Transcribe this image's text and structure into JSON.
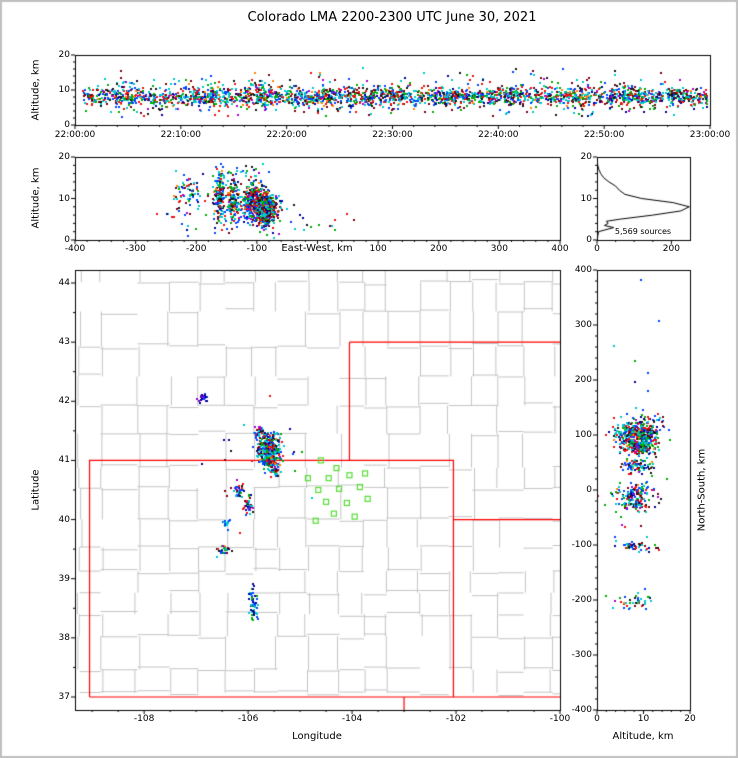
{
  "title": "Colorado LMA 2200-2300 UTC June 30, 2021",
  "annotations": {
    "hist_sources": "5,569 sources"
  },
  "axis_labels": {
    "time_height_y": "Altitude, km",
    "ew_y": "Altitude, km",
    "ew_x": "East-West, km",
    "map_x": "Longitude",
    "map_y": "Latitude",
    "ns_x": "Altitude, km",
    "ns_y": "North-South, km"
  },
  "colors": {
    "state_border": "#ff0000",
    "county_border": "#c4c4c4",
    "station": "#55dd33",
    "hist_line": "#000000",
    "frame": "#c0c0c0",
    "palette": [
      "#00c8c8",
      "#0044ff",
      "#000099",
      "#00aa00",
      "#ee1111",
      "#7a0011",
      "#151515",
      "#aa00cc",
      "#ff8800"
    ],
    "palette_weights": [
      0.25,
      0.17,
      0.06,
      0.13,
      0.15,
      0.1,
      0.07,
      0.04,
      0.03
    ]
  },
  "chart_data": [
    {
      "id": "time_height",
      "type": "scatter",
      "ylabel": "Altitude, km",
      "xlim": [
        0,
        3600
      ],
      "ylim": [
        0,
        20
      ],
      "xtick_pos": [
        0,
        600,
        1200,
        1800,
        2400,
        3000,
        3600
      ],
      "xtick_labels": [
        "22:00:00",
        "22:10:00",
        "22:20:00",
        "22:30:00",
        "22:40:00",
        "22:50:00",
        "23:00:00"
      ],
      "yticks": [
        0,
        10,
        20
      ],
      "clusters": [
        {
          "dist": "uniform",
          "x0": 40,
          "x1": 3580,
          "y": 8.4,
          "sy": 1.2,
          "n": 1500
        },
        {
          "dist": "uniform",
          "x0": 40,
          "x1": 3580,
          "y": 8.4,
          "sy": 2.6,
          "n": 420
        },
        {
          "x": 300,
          "sx": 70,
          "y": 8.8,
          "sy": 1.8,
          "n": 70
        },
        {
          "x": 700,
          "sx": 60,
          "y": 8.2,
          "sy": 1.6,
          "n": 70
        },
        {
          "x": 1050,
          "sx": 60,
          "y": 8.6,
          "sy": 1.7,
          "n": 70
        },
        {
          "x": 1350,
          "sx": 70,
          "y": 8.0,
          "sy": 1.6,
          "n": 70
        },
        {
          "x": 1750,
          "sx": 70,
          "y": 8.5,
          "sy": 1.8,
          "n": 70
        },
        {
          "x": 2100,
          "sx": 60,
          "y": 8.3,
          "sy": 1.6,
          "n": 60
        },
        {
          "x": 2450,
          "sx": 60,
          "y": 8.6,
          "sy": 1.6,
          "n": 60
        },
        {
          "x": 2800,
          "sx": 60,
          "y": 8.2,
          "sy": 1.5,
          "n": 50
        },
        {
          "x": 3150,
          "sx": 70,
          "y": 8.5,
          "sy": 1.6,
          "n": 60
        },
        {
          "x": 3400,
          "sx": 60,
          "y": 8.0,
          "sy": 1.4,
          "n": 40
        },
        {
          "dist": "uniform",
          "x0": 150,
          "x1": 3450,
          "y": 13.5,
          "sy": 1.6,
          "n": 60
        },
        {
          "dist": "uniform",
          "x0": 150,
          "x1": 3450,
          "y": 4.6,
          "sy": 0.9,
          "n": 50
        }
      ]
    },
    {
      "id": "ew_alt",
      "type": "scatter",
      "xlabel": "East-West, km",
      "ylabel": "Altitude, km",
      "xlim": [
        -400,
        400
      ],
      "ylim": [
        0,
        20
      ],
      "xticks": [
        -400,
        -300,
        -200,
        -100,
        0,
        100,
        200,
        300,
        400
      ],
      "hide_zero_xtick": true,
      "yticks": [
        0,
        10,
        20
      ],
      "clusters": [
        {
          "x": -90,
          "sx": 11,
          "y": 8,
          "sy": 2.0,
          "n": 650
        },
        {
          "x": -112,
          "sx": 7,
          "y": 9.5,
          "sy": 2.3,
          "n": 200
        },
        {
          "x": -140,
          "sx": 6,
          "y": 10,
          "sy": 2.6,
          "n": 140
        },
        {
          "x": -163,
          "sx": 4,
          "y": 11.5,
          "sy": 3.0,
          "n": 150
        },
        {
          "x": -215,
          "sx": 9,
          "y": 12,
          "sy": 2.2,
          "n": 55
        },
        {
          "x": -125,
          "sx": 25,
          "y": 16.5,
          "sy": 1.3,
          "n": 22
        },
        {
          "x": -150,
          "sx": 55,
          "y": 7,
          "sy": 2.8,
          "n": 70
        },
        {
          "dist": "uniform",
          "x0": -260,
          "x1": 60,
          "y": 5,
          "sy": 1.5,
          "n": 30
        }
      ]
    },
    {
      "id": "alt_hist",
      "type": "line",
      "annotation": "5,569 sources",
      "xlim": [
        0,
        250
      ],
      "xticks": [
        0,
        200
      ],
      "ylim": [
        0,
        20
      ],
      "yticks": [
        0,
        10,
        20
      ],
      "altitudes": [
        0,
        1,
        2,
        3,
        3.5,
        4,
        4.5,
        5,
        6,
        7,
        8,
        9,
        10,
        11,
        12,
        13,
        14,
        15,
        16,
        17,
        18,
        19,
        20
      ],
      "counts": [
        1,
        2,
        4,
        45,
        20,
        30,
        25,
        60,
        150,
        225,
        248,
        205,
        120,
        75,
        60,
        50,
        32,
        18,
        10,
        5,
        2,
        1,
        0
      ]
    },
    {
      "id": "plan_view",
      "type": "scatter",
      "xlabel": "Longitude",
      "ylabel": "Latitude",
      "xlim": [
        -109.33,
        -100
      ],
      "ylim": [
        36.78,
        44.22
      ],
      "xticks": [
        -108,
        -106,
        -104,
        -102,
        -100
      ],
      "yticks": [
        37,
        38,
        39,
        40,
        41,
        42,
        43,
        44
      ],
      "clusters": [
        {
          "x": -105.62,
          "sx": 0.1,
          "y": 41.18,
          "sy": 0.13,
          "n": 480
        },
        {
          "x": -105.6,
          "sx": 0.05,
          "y": 41.1,
          "sy": 0.06,
          "n": 170
        },
        {
          "x": -105.8,
          "sx": 0.06,
          "y": 41.5,
          "sy": 0.05,
          "n": 32
        },
        {
          "x": -106.9,
          "sx": 0.06,
          "y": 42.08,
          "sy": 0.04,
          "n": 26,
          "pal": [
            "#8800cc",
            "#2200cc",
            "#0044ff",
            "#000099"
          ]
        },
        {
          "x": -106.2,
          "sx": 0.05,
          "y": 40.5,
          "sy": 0.05,
          "n": 38
        },
        {
          "x": -106.02,
          "sx": 0.04,
          "y": 40.26,
          "sy": 0.09,
          "n": 42
        },
        {
          "x": -106.45,
          "sx": 0.04,
          "y": 39.95,
          "sy": 0.04,
          "n": 16,
          "pal": [
            "#0044ff",
            "#00c8c8"
          ]
        },
        {
          "x": -106.5,
          "sx": 0.06,
          "y": 39.5,
          "sy": 0.04,
          "n": 28
        },
        {
          "x": -105.92,
          "sx": 0.04,
          "y": 38.62,
          "sy": 0.15,
          "n": 60,
          "pal": [
            "#0044ff",
            "#00c8c8",
            "#000099",
            "#00aa00"
          ]
        },
        {
          "x": -105.5,
          "sx": 0.05,
          "y": 40.85,
          "sy": 0.05,
          "n": 28
        },
        {
          "x": -105.75,
          "sx": 0.45,
          "y": 40.9,
          "sy": 0.5,
          "n": 26
        }
      ]
    },
    {
      "id": "ns_alt",
      "type": "scatter",
      "xlabel": "Altitude, km",
      "ylabel": "North-South, km",
      "xlim": [
        0,
        20
      ],
      "ylim": [
        -400,
        400
      ],
      "xticks": [
        0,
        10,
        20
      ],
      "yticks": [
        400,
        300,
        200,
        100,
        0,
        -100,
        -200,
        -300,
        -400
      ],
      "clusters": [
        {
          "x": 8.5,
          "sx": 2.2,
          "y": 105,
          "sy": 10,
          "n": 400
        },
        {
          "x": 9.0,
          "sx": 2.0,
          "y": 80,
          "sy": 7,
          "n": 190
        },
        {
          "x": 8.0,
          "sx": 2.0,
          "y": 45,
          "sy": 6,
          "n": 80
        },
        {
          "x": 8.0,
          "sx": 2.2,
          "y": -5,
          "sy": 8,
          "n": 110
        },
        {
          "x": 7.5,
          "sx": 2.0,
          "y": -25,
          "sy": 5,
          "n": 60
        },
        {
          "x": 8.0,
          "sx": 2.0,
          "y": -100,
          "sy": 4,
          "n": 45
        },
        {
          "x": 8.0,
          "sx": 2.4,
          "y": -200,
          "sy": 6,
          "n": 40
        },
        {
          "x": 10.5,
          "sx": 2.5,
          "y": 130,
          "sy": 5,
          "n": 24
        },
        {
          "x": 9.0,
          "sx": 3.0,
          "y": 30,
          "sy": 120,
          "n": 40
        }
      ]
    }
  ],
  "map_layers": {
    "state_borders": [
      [
        [
          -109.05,
          37.0
        ],
        [
          -102.05,
          37.0
        ],
        [
          -102.05,
          41.0
        ],
        [
          -109.05,
          41.0
        ],
        [
          -109.05,
          37.0
        ]
      ],
      [
        [
          -104.05,
          41.0
        ],
        [
          -104.05,
          43.0
        ]
      ],
      [
        [
          -104.05,
          43.0
        ],
        [
          -100.0,
          43.0
        ]
      ],
      [
        [
          -102.05,
          40.0
        ],
        [
          -100.0,
          40.0
        ]
      ],
      [
        [
          -102.05,
          37.0
        ],
        [
          -100.0,
          37.0
        ]
      ],
      [
        [
          -103.0,
          37.0
        ],
        [
          -103.0,
          36.78
        ]
      ]
    ],
    "counties": {
      "seed": 7,
      "lon_step": 0.55,
      "lat_step": 0.46,
      "jitter": 0.1,
      "draw_prob": 0.72
    },
    "stations": [
      [
        -104.6,
        41.0
      ],
      [
        -104.3,
        40.87
      ],
      [
        -104.85,
        40.7
      ],
      [
        -104.45,
        40.7
      ],
      [
        -104.05,
        40.75
      ],
      [
        -103.75,
        40.78
      ],
      [
        -104.65,
        40.5
      ],
      [
        -104.25,
        40.52
      ],
      [
        -103.85,
        40.55
      ],
      [
        -104.5,
        40.3
      ],
      [
        -104.1,
        40.28
      ],
      [
        -103.7,
        40.35
      ],
      [
        -104.35,
        40.1
      ],
      [
        -103.95,
        40.05
      ],
      [
        -104.7,
        39.98
      ]
    ]
  }
}
